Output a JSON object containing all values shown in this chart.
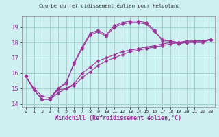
{
  "title": "Courbe du refroidissement éolien pour Helgoland",
  "xlabel": "Windchill (Refroidissement éolien,°C)",
  "bg_color": "#cff0f0",
  "line_color": "#993399",
  "grid_color": "#99cccc",
  "ylim": [
    13.8,
    19.7
  ],
  "xlim": [
    -0.5,
    23.5
  ],
  "yticks": [
    14,
    15,
    16,
    17,
    18,
    19
  ],
  "xticks": [
    0,
    1,
    2,
    3,
    4,
    5,
    6,
    7,
    8,
    9,
    10,
    11,
    12,
    13,
    14,
    15,
    16,
    17,
    18,
    19,
    20,
    21,
    22,
    23
  ],
  "series": [
    [
      15.8,
      14.9,
      14.3,
      14.3,
      14.9,
      15.0,
      15.3,
      16.0,
      16.4,
      16.8,
      17.0,
      17.2,
      17.4,
      17.5,
      17.6,
      17.7,
      17.8,
      17.9,
      18.0,
      18.0,
      18.1,
      18.1,
      18.1,
      18.2
    ],
    [
      15.8,
      14.9,
      14.3,
      14.3,
      14.7,
      15.0,
      15.2,
      15.7,
      16.1,
      16.5,
      16.8,
      17.0,
      17.2,
      17.4,
      17.5,
      17.6,
      17.7,
      17.8,
      17.9,
      18.0,
      18.0,
      18.1,
      18.1,
      18.2
    ],
    [
      15.8,
      14.9,
      14.3,
      14.3,
      15.0,
      15.3,
      16.7,
      17.7,
      18.6,
      18.8,
      18.5,
      19.1,
      19.3,
      19.4,
      19.4,
      19.3,
      18.8,
      18.1,
      18.1,
      18.0,
      18.0,
      18.0,
      18.0,
      18.2
    ],
    [
      15.8,
      15.0,
      14.5,
      14.4,
      15.0,
      15.4,
      16.6,
      17.6,
      18.5,
      18.7,
      18.4,
      19.0,
      19.2,
      19.3,
      19.3,
      19.2,
      18.7,
      18.2,
      18.1,
      17.9,
      18.0,
      18.1,
      18.1,
      18.2
    ]
  ],
  "markersizes": [
    2.5,
    2.5,
    2.5,
    2.5
  ],
  "linewidths": [
    0.8,
    0.8,
    0.8,
    0.8
  ]
}
